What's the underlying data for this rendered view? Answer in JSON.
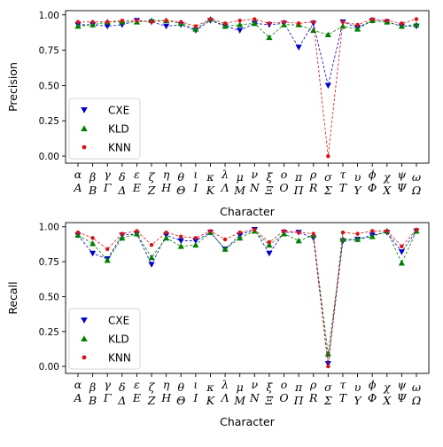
{
  "chart_data": [
    {
      "type": "line",
      "ylabel": "Precision",
      "xlabel": "Character",
      "ylim": [
        -0.05,
        1.03
      ],
      "yticks": [
        "0.00",
        "0.25",
        "0.50",
        "0.75",
        "1.00"
      ],
      "ytick_values": [
        0,
        0.25,
        0.5,
        0.75,
        1.0
      ],
      "grid": false,
      "legend_position": "lower-left",
      "categories_lower": [
        "α",
        "β",
        "γ",
        "δ",
        "ε",
        "ζ",
        "η",
        "θ",
        "ι",
        "κ",
        "λ",
        "μ",
        "ν",
        "ξ",
        "ο",
        "π",
        "ρ",
        "σ",
        "τ",
        "υ",
        "ϕ",
        "χ",
        "ψ",
        "ω"
      ],
      "categories_upper": [
        "A",
        "B",
        "Γ",
        "Δ",
        "E",
        "Z",
        "H",
        "Θ",
        "I",
        "K",
        "Λ",
        "M",
        "N",
        "Ξ",
        "O",
        "Π",
        "R",
        "Σ",
        "T",
        "Y",
        "Φ",
        "X",
        "Ψ",
        "Ω"
      ],
      "series": [
        {
          "name": "CXE",
          "color": "#0000cc",
          "marker": "triangle-down",
          "values": [
            0.93,
            0.93,
            0.92,
            0.93,
            0.96,
            0.95,
            0.92,
            0.93,
            0.89,
            0.96,
            0.92,
            0.89,
            0.94,
            0.93,
            0.94,
            0.77,
            0.94,
            0.5,
            0.95,
            0.91,
            0.96,
            0.95,
            0.92,
            0.92
          ]
        },
        {
          "name": "KLD",
          "color": "#008000",
          "marker": "triangle-up",
          "values": [
            0.92,
            0.93,
            0.95,
            0.95,
            0.95,
            0.96,
            0.96,
            0.94,
            0.9,
            0.97,
            0.92,
            0.93,
            0.94,
            0.84,
            0.93,
            0.93,
            0.89,
            0.86,
            0.92,
            0.9,
            0.96,
            0.95,
            0.92,
            0.93
          ]
        },
        {
          "name": "KNN",
          "color": "#dd1111",
          "marker": "circle",
          "values": [
            0.95,
            0.95,
            0.95,
            0.96,
            0.96,
            0.95,
            0.96,
            0.95,
            0.92,
            0.97,
            0.94,
            0.96,
            0.97,
            0.94,
            0.95,
            0.94,
            0.95,
            0.0,
            0.95,
            0.93,
            0.97,
            0.96,
            0.94,
            0.97
          ]
        }
      ]
    },
    {
      "type": "line",
      "ylabel": "Recall",
      "xlabel": "Character",
      "ylim": [
        -0.05,
        1.03
      ],
      "yticks": [
        "0.00",
        "0.25",
        "0.50",
        "0.75",
        "1.00"
      ],
      "ytick_values": [
        0,
        0.25,
        0.5,
        0.75,
        1.0
      ],
      "grid": false,
      "legend_position": "lower-left",
      "categories_lower": [
        "α",
        "β",
        "γ",
        "δ",
        "ε",
        "ζ",
        "η",
        "θ",
        "ι",
        "κ",
        "λ",
        "μ",
        "ν",
        "ξ",
        "ο",
        "π",
        "ρ",
        "σ",
        "τ",
        "υ",
        "ϕ",
        "χ",
        "ψ",
        "ω"
      ],
      "categories_upper": [
        "A",
        "B",
        "Γ",
        "Δ",
        "E",
        "Z",
        "H",
        "Θ",
        "I",
        "K",
        "Λ",
        "M",
        "N",
        "Ξ",
        "O",
        "Π",
        "R",
        "Σ",
        "T",
        "Y",
        "Φ",
        "X",
        "Ψ",
        "Ω"
      ],
      "series": [
        {
          "name": "CXE",
          "color": "#0000cc",
          "marker": "triangle-down",
          "values": [
            0.94,
            0.81,
            0.77,
            0.94,
            0.95,
            0.73,
            0.94,
            0.9,
            0.9,
            0.96,
            0.84,
            0.94,
            0.98,
            0.81,
            0.96,
            0.96,
            0.92,
            0.02,
            0.9,
            0.91,
            0.94,
            0.96,
            0.82,
            0.97
          ]
        },
        {
          "name": "KLD",
          "color": "#008000",
          "marker": "triangle-up",
          "values": [
            0.94,
            0.88,
            0.76,
            0.92,
            0.95,
            0.78,
            0.92,
            0.86,
            0.87,
            0.96,
            0.84,
            0.92,
            0.97,
            0.87,
            0.95,
            0.9,
            0.94,
            0.09,
            0.91,
            0.91,
            0.93,
            0.97,
            0.74,
            0.97
          ]
        },
        {
          "name": "KNN",
          "color": "#dd1111",
          "marker": "circle",
          "values": [
            0.96,
            0.92,
            0.84,
            0.95,
            0.97,
            0.87,
            0.96,
            0.93,
            0.92,
            0.97,
            0.91,
            0.96,
            0.98,
            0.89,
            0.97,
            0.96,
            0.95,
            0.0,
            0.96,
            0.95,
            0.97,
            0.97,
            0.86,
            0.98
          ]
        }
      ]
    }
  ]
}
